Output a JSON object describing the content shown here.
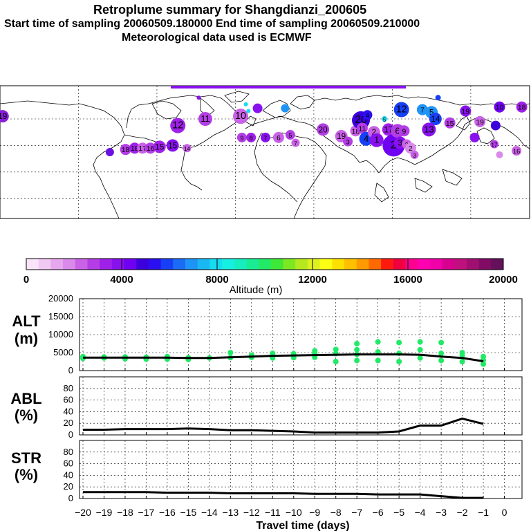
{
  "header": {
    "title": "Retroplume summary for Shangdianzi_200605",
    "sampling": "Start time of sampling 20060509.180000     End time of sampling 20060509.210000",
    "met": "Meteorological data used is ECMWF"
  },
  "colorbar": {
    "colors": [
      "#f9e4f9",
      "#f1c8f3",
      "#e6a7ee",
      "#d98aea",
      "#c962e6",
      "#b43ee6",
      "#9f21e8",
      "#8811ee",
      "#6f00f2",
      "#3c00dc",
      "#2a10f0",
      "#1740f6",
      "#1a6cf6",
      "#1d94f6",
      "#19b8f3",
      "#17dbf0",
      "#16f0e2",
      "#16eec0",
      "#1aec95",
      "#20ea66",
      "#3fe836",
      "#7de821",
      "#b6e81e",
      "#dff020",
      "#fbff14",
      "#ffe100",
      "#ffc000",
      "#ff9a00",
      "#ff6a00",
      "#ff1a10",
      "#f00040",
      "#ff0090",
      "#ff00b0",
      "#f000a8",
      "#d8008f",
      "#c0107f",
      "#a00f70",
      "#820b66",
      "#64105a"
    ],
    "tick_labels": [
      "0",
      "4000",
      "8000",
      "12000",
      "16000",
      "20000"
    ],
    "label": "Altitude (m)"
  },
  "map": {
    "plume_points": [
      {
        "lon": -178,
        "lat": 62,
        "r": 9,
        "color": "#8a1fdc",
        "label": "19"
      },
      {
        "lon": -96,
        "lat": 35,
        "r": 6,
        "color": "#6a10e2",
        "label": ""
      },
      {
        "lon": -84,
        "lat": 37,
        "r": 8,
        "color": "#b43ee6",
        "label": "18"
      },
      {
        "lon": -77,
        "lat": 38,
        "r": 8,
        "color": "#9f21e8",
        "label": "18"
      },
      {
        "lon": -71,
        "lat": 38,
        "r": 8,
        "color": "#c962e6",
        "label": "17"
      },
      {
        "lon": -65,
        "lat": 38,
        "r": 8,
        "color": "#b43ee6",
        "label": "16"
      },
      {
        "lon": -58,
        "lat": 39,
        "r": 9,
        "color": "#9f21e8",
        "label": "15"
      },
      {
        "lon": -48,
        "lat": 40,
        "r": 9,
        "color": "#8811ee",
        "label": "15"
      },
      {
        "lon": -37,
        "lat": 38,
        "r": 6,
        "color": "#c962e6",
        "label": "14"
      },
      {
        "lon": -44,
        "lat": 55,
        "r": 11,
        "color": "#9f21e8",
        "label": "12"
      },
      {
        "lon": -23,
        "lat": 60,
        "r": 10,
        "color": "#b43ee6",
        "label": "11"
      },
      {
        "lon": 4,
        "lat": 62,
        "r": 11,
        "color": "#c962e6",
        "label": "10"
      },
      {
        "lon": 10,
        "lat": 66,
        "r": 3,
        "color": "#16dbf0",
        "label": ""
      },
      {
        "lon": 17,
        "lat": 68,
        "r": 7,
        "color": "#8811ee",
        "label": ""
      },
      {
        "lon": 38,
        "lat": 68,
        "r": 6,
        "color": "#1d94f6",
        "label": ""
      },
      {
        "lon": 5,
        "lat": 46,
        "r": 7,
        "color": "#b43ee6",
        "label": "9"
      },
      {
        "lon": 12,
        "lat": 46,
        "r": 7,
        "color": "#9f21e8",
        "label": "8"
      },
      {
        "lon": 23,
        "lat": 46,
        "r": 7,
        "color": "#8811ee",
        "label": "7"
      },
      {
        "lon": 33,
        "lat": 46,
        "r": 8,
        "color": "#c962e6",
        "label": "6"
      },
      {
        "lon": 42,
        "lat": 48,
        "r": 7,
        "color": "#b43ee6",
        "label": "5"
      },
      {
        "lon": 46,
        "lat": 42,
        "r": 6,
        "color": "#c962e6",
        "label": "7"
      },
      {
        "lon": 67,
        "lat": 52,
        "r": 9,
        "color": "#b43ee6",
        "label": "20"
      },
      {
        "lon": 81,
        "lat": 47,
        "r": 9,
        "color": "#c962e6",
        "label": "19"
      },
      {
        "lon": 86,
        "lat": 43,
        "r": 7,
        "color": "#b43ee6",
        "label": "3"
      },
      {
        "lon": 92,
        "lat": 51,
        "r": 8,
        "color": "#c962e6",
        "label": "18"
      },
      {
        "lon": 96,
        "lat": 59,
        "r": 13,
        "color": "#3c00dc",
        "label": "20"
      },
      {
        "lon": 97,
        "lat": 53,
        "r": 8,
        "color": "#b43ee6",
        "label": "11"
      },
      {
        "lon": 101,
        "lat": 63,
        "r": 7,
        "color": "#2a10f0",
        "label": "4"
      },
      {
        "lon": 100,
        "lat": 45,
        "r": 10,
        "color": "#1740f6",
        "label": "4"
      },
      {
        "lon": 106,
        "lat": 50,
        "r": 9,
        "color": "#c962e6",
        "label": "2"
      },
      {
        "lon": 108,
        "lat": 44,
        "r": 10,
        "color": "#8811ee",
        "label": "1"
      },
      {
        "lon": 114,
        "lat": 60,
        "r": 4,
        "color": "#17dbf0",
        "label": "5"
      },
      {
        "lon": 117,
        "lat": 52,
        "r": 9,
        "color": "#9f21e8",
        "label": "17"
      },
      {
        "lon": 121,
        "lat": 40,
        "r": 16,
        "color": "#6f00f2",
        "label": "2"
      },
      {
        "lon": 124,
        "lat": 51,
        "r": 10,
        "color": "#b43ee6",
        "label": "6"
      },
      {
        "lon": 126,
        "lat": 42,
        "r": 9,
        "color": "#8811ee",
        "label": "3"
      },
      {
        "lon": 129,
        "lat": 51,
        "r": 8,
        "color": "#b43ee6",
        "label": "9"
      },
      {
        "lon": 131,
        "lat": 41,
        "r": 7,
        "color": "#c962e6",
        "label": "2"
      },
      {
        "lon": 134,
        "lat": 38,
        "r": 8,
        "color": "#d98aea",
        "label": "2"
      },
      {
        "lon": 137,
        "lat": 33,
        "r": 6,
        "color": "#c962e6",
        "label": "3"
      },
      {
        "lon": 127,
        "lat": 67,
        "r": 11,
        "color": "#1740f6",
        "label": "12"
      },
      {
        "lon": 143,
        "lat": 67,
        "r": 8,
        "color": "#1d94f6",
        "label": "7"
      },
      {
        "lon": 150,
        "lat": 65,
        "r": 9,
        "color": "#1d94f6",
        "label": "5"
      },
      {
        "lon": 153,
        "lat": 60,
        "r": 9,
        "color": "#1740f6",
        "label": "14"
      },
      {
        "lon": 148,
        "lat": 52,
        "r": 10,
        "color": "#8811ee",
        "label": "13"
      },
      {
        "lon": 164,
        "lat": 57,
        "r": 8,
        "color": "#b43ee6",
        "label": "15"
      },
      {
        "lon": 176,
        "lat": 66,
        "r": 8,
        "color": "#8811ee",
        "label": "19"
      },
      {
        "lon": 187,
        "lat": 58,
        "r": 8,
        "color": "#c962e6",
        "label": "19"
      },
      {
        "lon": 202,
        "lat": 69,
        "r": 8,
        "color": "#6f00f2",
        "label": "10"
      },
      {
        "lon": 219,
        "lat": 69,
        "r": 8,
        "color": "#9f21e8",
        "label": "18"
      },
      {
        "lon": 199,
        "lat": 55,
        "r": 7,
        "color": "#3c00dc",
        "label": ""
      },
      {
        "lon": 183,
        "lat": 46,
        "r": 7,
        "color": "#8811ee",
        "label": ""
      },
      {
        "lon": 198,
        "lat": 41,
        "r": 6,
        "color": "#b43ee6",
        "label": "17"
      },
      {
        "lon": 215,
        "lat": 36,
        "r": 7,
        "color": "#c962e6",
        "label": "16"
      },
      {
        "lon": 202,
        "lat": 33,
        "r": 5,
        "color": "#d98aea",
        "label": ""
      },
      {
        "lon": 155,
        "lat": 76,
        "r": 4,
        "color": "#1740f6",
        "label": ""
      },
      {
        "lon": -28,
        "lat": 76,
        "r": 3,
        "color": "#8811ee",
        "label": ""
      },
      {
        "lon": 8,
        "lat": 71,
        "r": 3,
        "color": "#17dbf0",
        "label": ""
      }
    ]
  },
  "chart_data": [
    {
      "type": "scatter",
      "panel": "ALT",
      "ylabel": "ALT\n(m)",
      "ylim": [
        0,
        20000
      ],
      "yticks": [
        "20000",
        "15000",
        "10000",
        "5000",
        "0"
      ],
      "x": [
        -20,
        -19,
        -18,
        -17,
        -16,
        -15,
        -14,
        -13,
        -12,
        -11,
        -10,
        -9,
        -8,
        -7,
        -6,
        -5,
        -4,
        -3,
        -2,
        -1
      ],
      "line_values": [
        3600,
        3600,
        3600,
        3600,
        3600,
        3500,
        3500,
        3700,
        3900,
        4100,
        4200,
        4300,
        4400,
        4500,
        4500,
        4500,
        4400,
        3900,
        3500,
        2600
      ],
      "points": [
        [
          -20,
          3900
        ],
        [
          -20,
          3400
        ],
        [
          -19,
          3800
        ],
        [
          -19,
          3500
        ],
        [
          -18,
          3800
        ],
        [
          -18,
          3300
        ],
        [
          -17,
          3700
        ],
        [
          -17,
          3200
        ],
        [
          -16,
          3900
        ],
        [
          -16,
          3200
        ],
        [
          -15,
          3600
        ],
        [
          -15,
          3100
        ],
        [
          -14,
          3500
        ],
        [
          -13,
          5000
        ],
        [
          -13,
          3600
        ],
        [
          -12,
          4300
        ],
        [
          -12,
          3700
        ],
        [
          -11,
          4800
        ],
        [
          -11,
          3900
        ],
        [
          -11,
          3500
        ],
        [
          -10,
          4700
        ],
        [
          -10,
          3600
        ],
        [
          -9,
          5500
        ],
        [
          -9,
          4800
        ],
        [
          -9,
          3700
        ],
        [
          -8,
          5900
        ],
        [
          -8,
          4700
        ],
        [
          -8,
          2500
        ],
        [
          -7,
          7500
        ],
        [
          -7,
          5800
        ],
        [
          -7,
          4500
        ],
        [
          -7,
          2800
        ],
        [
          -6,
          8000
        ],
        [
          -6,
          5200
        ],
        [
          -6,
          2800
        ],
        [
          -5,
          7800
        ],
        [
          -5,
          4800
        ],
        [
          -5,
          2500
        ],
        [
          -4,
          8000
        ],
        [
          -4,
          5800
        ],
        [
          -4,
          3500
        ],
        [
          -3,
          7800
        ],
        [
          -3,
          4800
        ],
        [
          -3,
          2800
        ],
        [
          -2,
          5000
        ],
        [
          -2,
          4200
        ],
        [
          -2,
          2500
        ],
        [
          -1,
          3900
        ],
        [
          -1,
          2900
        ],
        [
          -1,
          1800
        ]
      ],
      "point_color": "#20ea66"
    },
    {
      "type": "line",
      "panel": "ABL",
      "ylabel": "ABL\n(%)",
      "ylim": [
        0,
        100
      ],
      "yticks": [
        "80",
        "60",
        "40",
        "20",
        "0"
      ],
      "x": [
        -20,
        -19,
        -18,
        -17,
        -16,
        -15,
        -14,
        -13,
        -12,
        -11,
        -10,
        -9,
        -8,
        -7,
        -6,
        -5,
        -4,
        -3,
        -2,
        -1
      ],
      "values": [
        9,
        9,
        10,
        10,
        10,
        11,
        10,
        8,
        8,
        7,
        6,
        4,
        4,
        4,
        4,
        6,
        16,
        16,
        28,
        19
      ]
    },
    {
      "type": "line",
      "panel": "STR",
      "ylabel": "STR\n(%)",
      "ylim": [
        0,
        100
      ],
      "yticks": [
        "80",
        "60",
        "40",
        "20",
        "0"
      ],
      "x": [
        -20,
        -19,
        -18,
        -17,
        -16,
        -15,
        -14,
        -13,
        -12,
        -11,
        -10,
        -9,
        -8,
        -7,
        -6,
        -5,
        -4,
        -3,
        -2,
        -1
      ],
      "values": [
        11,
        11,
        11,
        11,
        10,
        10,
        10,
        9,
        9,
        9,
        9,
        8,
        8,
        8,
        7,
        7,
        7,
        4,
        1,
        1
      ]
    }
  ],
  "xaxis": {
    "tick_labels": [
      "−20",
      "−19",
      "−18",
      "−17",
      "−16",
      "−15",
      "−14",
      "−13",
      "−12",
      "−11",
      "−10",
      "−9",
      "−8",
      "−7",
      "−6",
      "−5",
      "−4",
      "−3",
      "−2",
      "−1",
      "0"
    ],
    "label": "Travel time (days)"
  }
}
